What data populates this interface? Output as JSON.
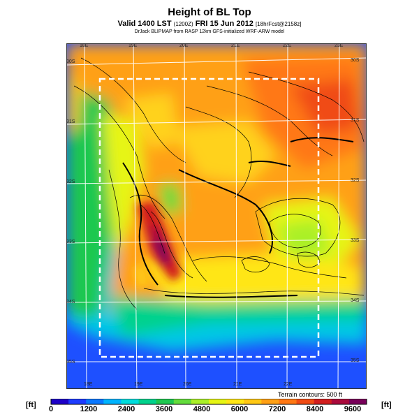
{
  "header": {
    "title": "Height of BL Top",
    "subtitle_main": "Valid 1400 LST",
    "subtitle_small": "(1200Z)",
    "subtitle_date": "FRI 15 Jun 2012",
    "subtitle_fcst": "[18hrFcst@2158z]",
    "credit": "DrJack BLIPMAP from RASP 12km GFS-initialized WRF-ARW model"
  },
  "map": {
    "lon_labels_top": [
      "18E",
      "19E",
      "20E",
      "21E",
      "22E",
      "23E"
    ],
    "lon_labels_bottom": [
      "18E",
      "19E",
      "20E",
      "21E",
      "22E"
    ],
    "lat_labels_left": [
      "30S",
      "31S",
      "32S",
      "33S",
      "34S",
      "35S"
    ],
    "lat_labels_right": [
      "30S",
      "31S",
      "32S",
      "33S",
      "34S",
      "35S"
    ],
    "terrain_note": "Terrain contours: 500 ft"
  },
  "colorbar": {
    "unit_label": "[ft]",
    "ticks": [
      "0",
      "1200",
      "2400",
      "3600",
      "4800",
      "6000",
      "7200",
      "8400",
      "9600"
    ],
    "colors": [
      "#1e00c8",
      "#1e3cff",
      "#0a78ff",
      "#00b4ff",
      "#00dcdc",
      "#00d28c",
      "#1ec850",
      "#64dc3c",
      "#aaf028",
      "#e6f514",
      "#ffe614",
      "#ffc814",
      "#ffa014",
      "#ff7814",
      "#f04b14",
      "#d21e1e",
      "#aa0a3c",
      "#78005a"
    ]
  }
}
